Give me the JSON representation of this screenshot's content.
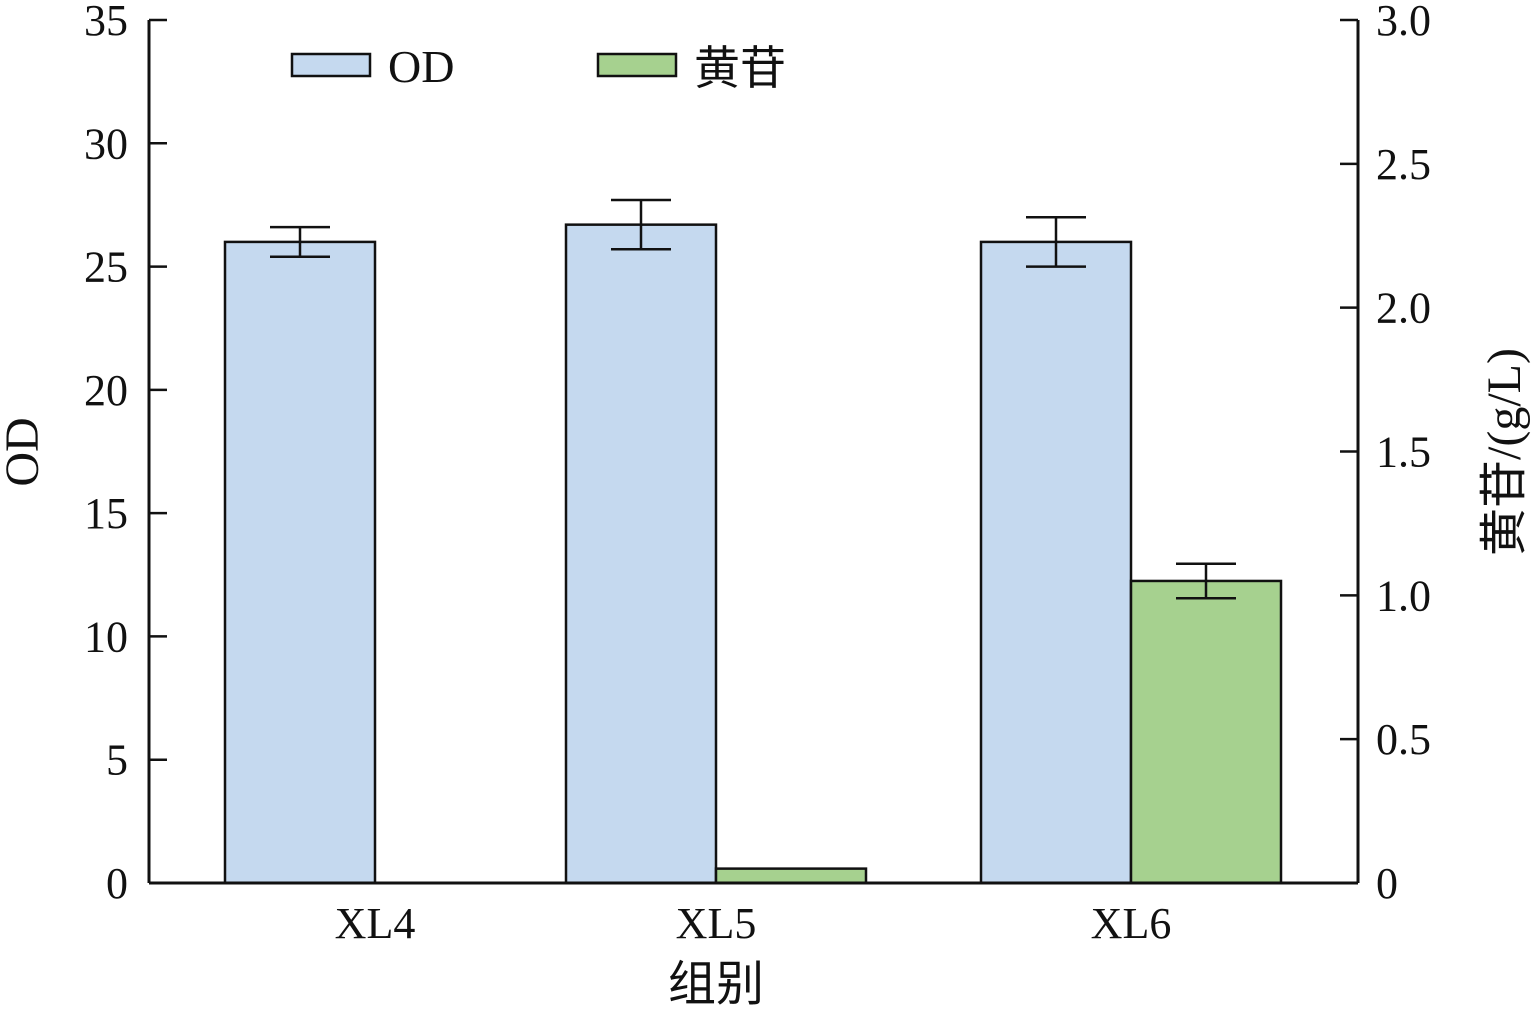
{
  "chart_data": {
    "type": "bar",
    "categories": [
      "XL4",
      "XL5",
      "XL6"
    ],
    "xlabel": "组别",
    "ylabel_left": "OD",
    "ylabel_right": "黄苷/(g/L)",
    "ylim_left": [
      0,
      35
    ],
    "ylim_right": [
      0,
      3.0
    ],
    "yticks_left": [
      "0",
      "5",
      "10",
      "15",
      "20",
      "25",
      "30",
      "35"
    ],
    "yticks_right": [
      "0",
      "0.5",
      "1.0",
      "1.5",
      "2.0",
      "2.5",
      "3.0"
    ],
    "grid": false,
    "legend_position": "top-left",
    "series": [
      {
        "name": "OD",
        "axis": "left",
        "color": "#c5d9ef",
        "values": [
          26.0,
          26.7,
          26.0
        ],
        "errors": [
          0.6,
          1.0,
          1.0
        ]
      },
      {
        "name": "黄苷",
        "axis": "right",
        "color": "#a6d18f",
        "values": [
          0.0,
          0.05,
          1.05
        ],
        "errors": [
          0.0,
          0.0,
          0.06
        ]
      }
    ]
  }
}
